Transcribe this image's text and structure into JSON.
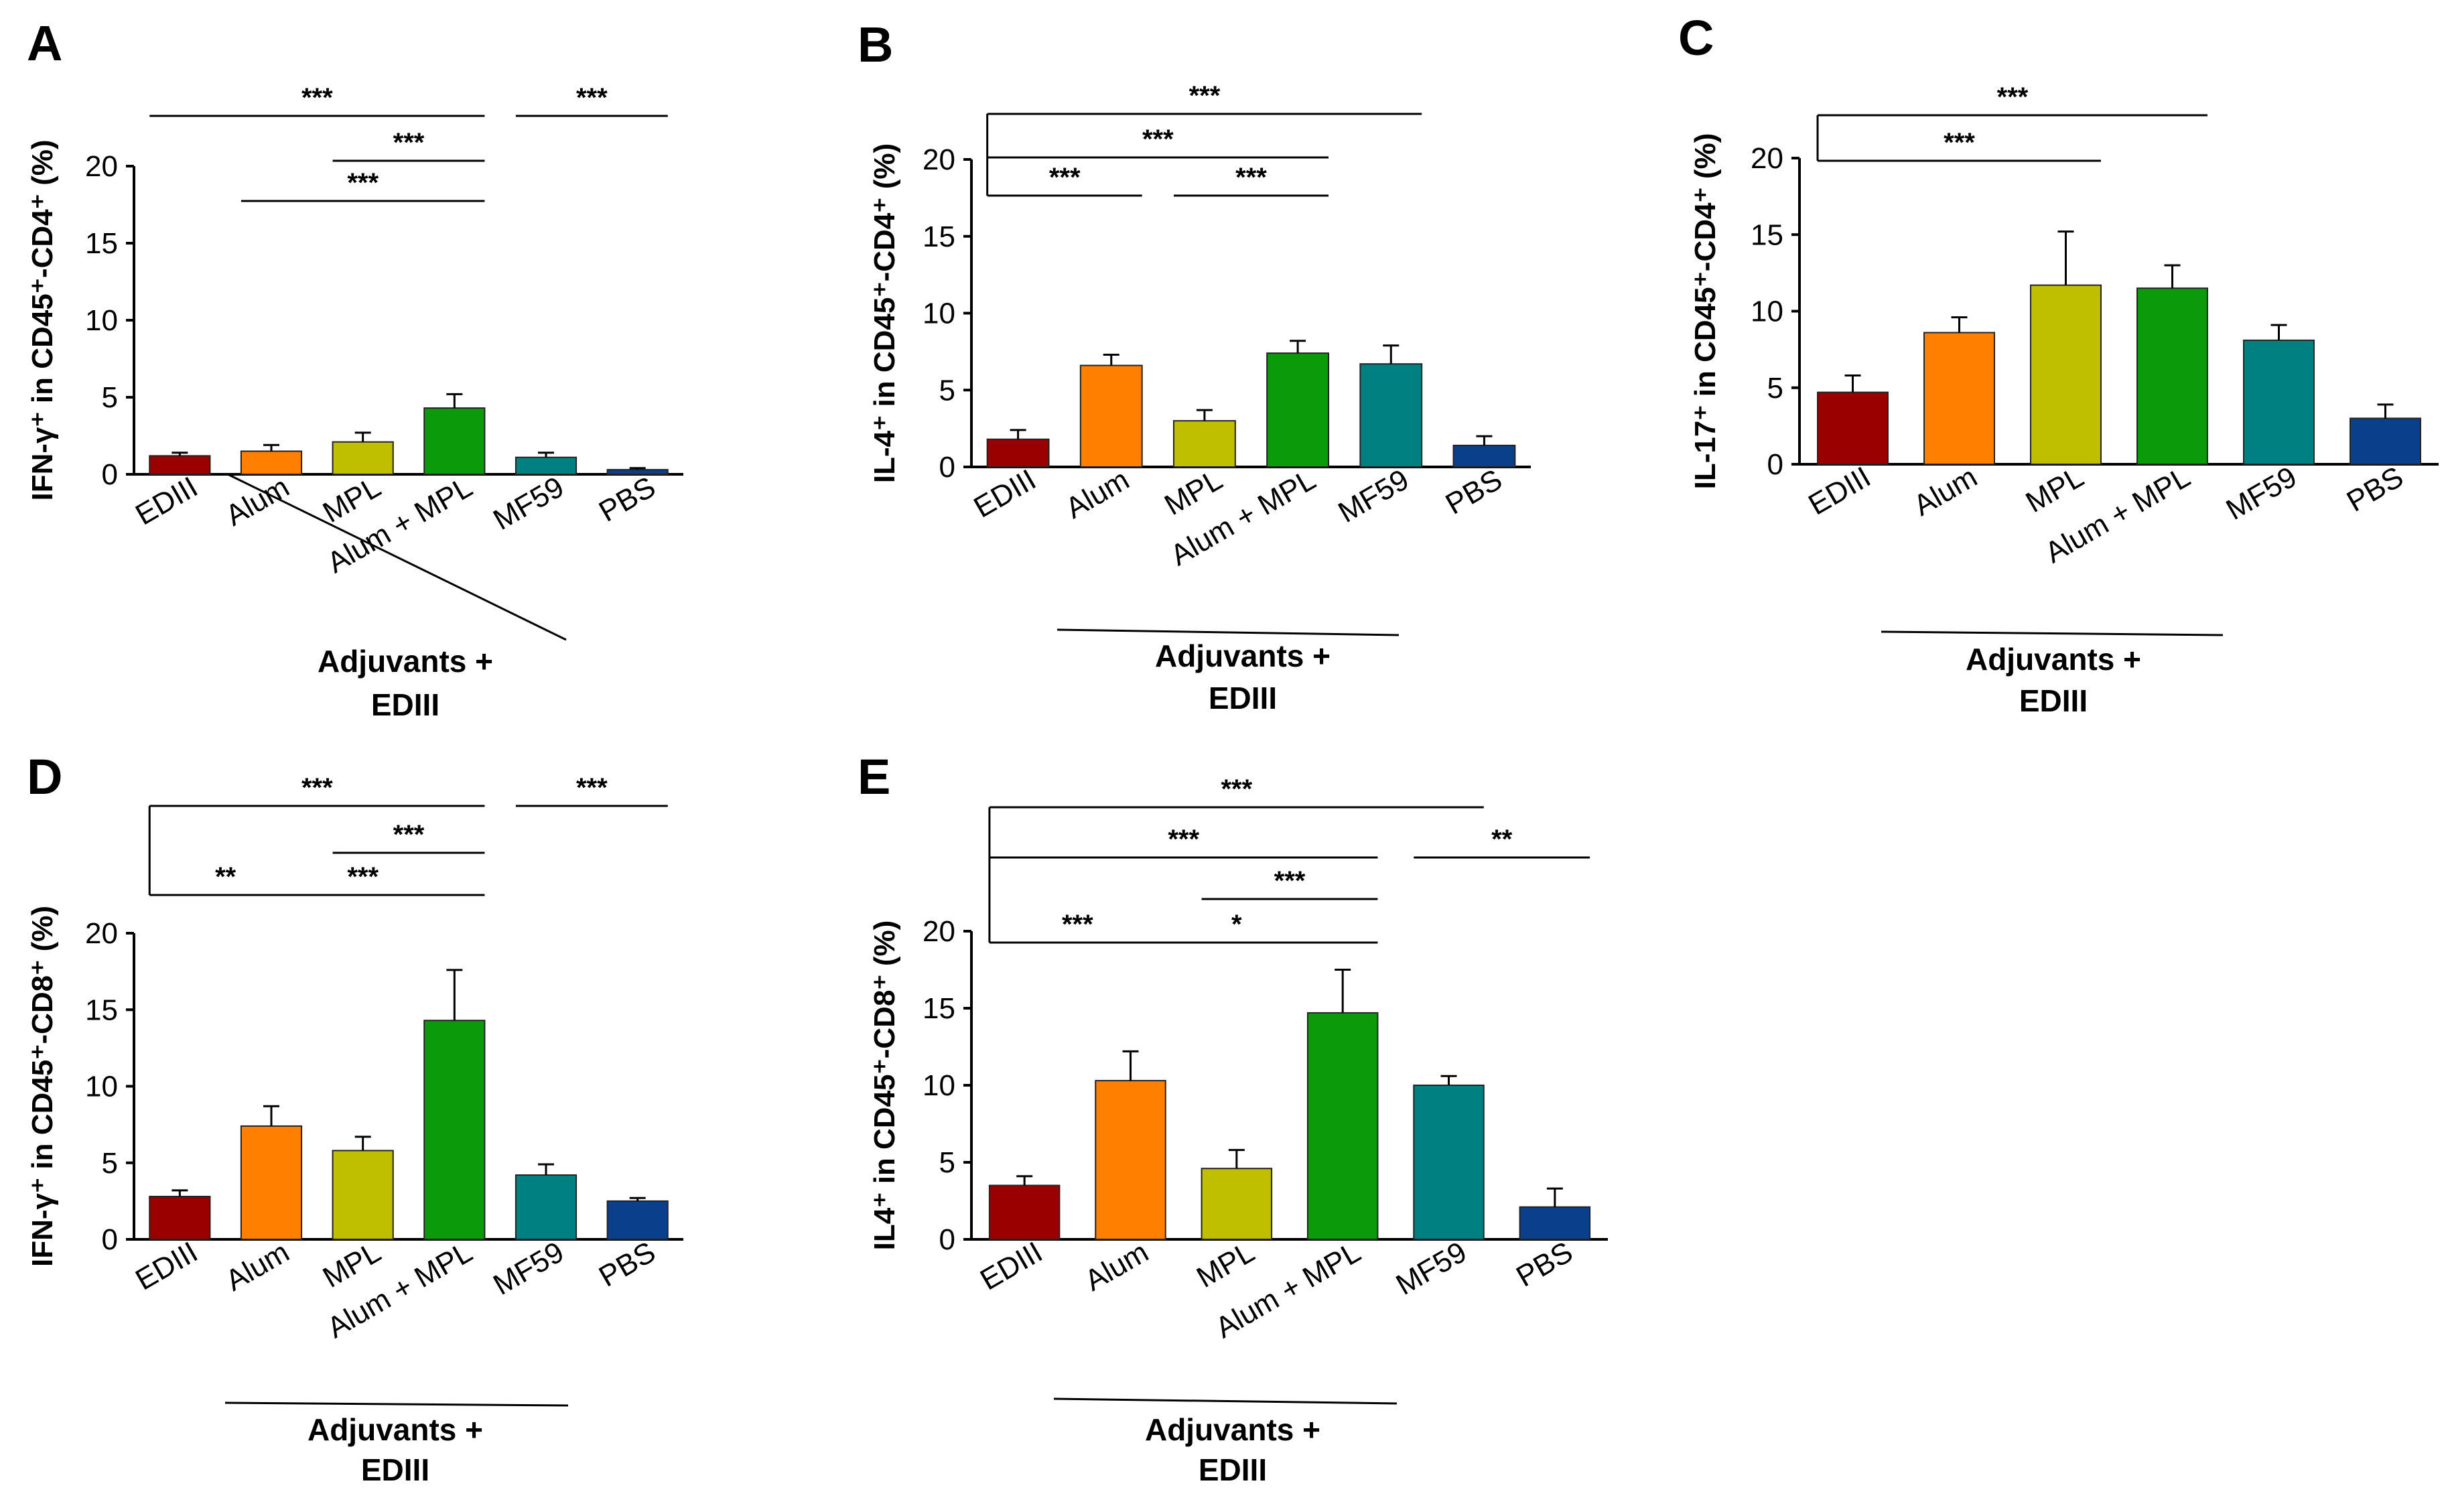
{
  "categories": [
    "EDIII",
    "Alum",
    "MPL",
    "Alum + MPL",
    "MF59",
    "PBS"
  ],
  "bar_colors": [
    "#9b0000",
    "#ff8000",
    "#bfbf00",
    "#0a9a0a",
    "#008080",
    "#0a3f8c"
  ],
  "group_label_line1": "Adjuvants +",
  "group_label_line2": "EDIII",
  "chart_data": [
    {
      "type": "bar",
      "panel": "A",
      "ylabel": "IFN-γ⁺ in CD45⁺-CD4⁺ (%)",
      "ylim": [
        0,
        20
      ],
      "yticks": [
        0,
        5,
        10,
        15,
        20
      ],
      "categories": [
        "EDIII",
        "Alum",
        "MPL",
        "Alum + MPL",
        "MF59",
        "PBS"
      ],
      "values": [
        1.2,
        1.5,
        2.1,
        4.3,
        1.1,
        0.3
      ],
      "errors": [
        0.2,
        0.4,
        0.6,
        0.9,
        0.3,
        0.1
      ],
      "significance": [
        {
          "from": "EDIII",
          "to": "Alum + MPL",
          "label": "***",
          "level": 3
        },
        {
          "from": "MF59",
          "to": "PBS",
          "label": "***",
          "level": 3
        },
        {
          "from": "MPL",
          "to": "Alum + MPL",
          "label": "***",
          "level": 2
        },
        {
          "from": "Alum",
          "to": "Alum + MPL",
          "label": "***",
          "level": 1
        }
      ]
    },
    {
      "type": "bar",
      "panel": "B",
      "ylabel": "IL-4⁺ in CD45⁺-CD4⁺ (%)",
      "ylim": [
        0,
        20
      ],
      "yticks": [
        0,
        5,
        10,
        15,
        20
      ],
      "categories": [
        "EDIII",
        "Alum",
        "MPL",
        "Alum + MPL",
        "MF59",
        "PBS"
      ],
      "values": [
        1.8,
        6.6,
        3.0,
        7.4,
        6.7,
        1.4
      ],
      "errors": [
        0.6,
        0.7,
        0.7,
        0.8,
        1.2,
        0.6
      ],
      "significance": [
        {
          "from": "EDIII",
          "to": "MF59",
          "label": "***",
          "level": 3
        },
        {
          "from": "EDIII",
          "to": "Alum + MPL",
          "label": "***",
          "level": 2
        },
        {
          "from": "EDIII",
          "to": "Alum",
          "label": "***",
          "level": 1
        },
        {
          "from": "MPL",
          "to": "Alum + MPL",
          "label": "***",
          "level": 1
        }
      ]
    },
    {
      "type": "bar",
      "panel": "C",
      "ylabel": "IL-17⁺ in CD45⁺-CD4⁺ (%)",
      "ylim": [
        0,
        20
      ],
      "yticks": [
        0,
        5,
        10,
        15,
        20
      ],
      "categories": [
        "EDIII",
        "Alum",
        "MPL",
        "Alum + MPL",
        "MF59",
        "PBS"
      ],
      "values": [
        4.7,
        8.6,
        11.7,
        11.5,
        8.1,
        3.0
      ],
      "errors": [
        1.1,
        1.0,
        3.5,
        1.5,
        1.0,
        0.9
      ],
      "significance": [
        {
          "from": "EDIII",
          "to": "Alum + MPL",
          "label": "***",
          "level": 2
        },
        {
          "from": "EDIII",
          "to": "MPL",
          "label": "***",
          "level": 1
        }
      ]
    },
    {
      "type": "bar",
      "panel": "D",
      "ylabel": "IFN-γ⁺ in CD45⁺-CD8⁺ (%)",
      "ylim": [
        0,
        20
      ],
      "yticks": [
        0,
        5,
        10,
        15,
        20
      ],
      "categories": [
        "EDIII",
        "Alum",
        "MPL",
        "Alum + MPL",
        "MF59",
        "PBS"
      ],
      "values": [
        2.8,
        7.4,
        5.8,
        14.3,
        4.2,
        2.5
      ],
      "errors": [
        0.4,
        1.3,
        0.9,
        3.3,
        0.7,
        0.2
      ],
      "significance": [
        {
          "from": "EDIII",
          "to": "Alum + MPL",
          "label": "***",
          "level": 3
        },
        {
          "from": "MF59",
          "to": "PBS",
          "label": "***",
          "level": 3
        },
        {
          "from": "MPL",
          "to": "Alum + MPL",
          "label": "***",
          "level": 2
        },
        {
          "from": "EDIII",
          "to": "Alum",
          "label": "**",
          "level": 1
        },
        {
          "from": "Alum",
          "to": "Alum + MPL",
          "label": "***",
          "level": 1
        }
      ]
    },
    {
      "type": "bar",
      "panel": "E",
      "ylabel": "IL4⁺ in CD45⁺-CD8⁺ (%)",
      "ylim": [
        0,
        20
      ],
      "yticks": [
        0,
        5,
        10,
        15,
        20
      ],
      "categories": [
        "EDIII",
        "Alum",
        "MPL",
        "Alum + MPL",
        "MF59",
        "PBS"
      ],
      "values": [
        3.5,
        10.3,
        4.6,
        14.7,
        10.0,
        2.1
      ],
      "errors": [
        0.6,
        1.9,
        1.2,
        2.8,
        0.6,
        1.2
      ],
      "significance": [
        {
          "from": "EDIII",
          "to": "MF59",
          "label": "***",
          "level": 4
        },
        {
          "from": "EDIII",
          "to": "Alum + MPL",
          "label": "***",
          "level": 3
        },
        {
          "from": "MF59",
          "to": "PBS",
          "label": "**",
          "level": 3
        },
        {
          "from": "MPL",
          "to": "Alum + MPL",
          "label": "***",
          "level": 2
        },
        {
          "from": "EDIII",
          "to": "Alum",
          "label": "***",
          "level": 1
        },
        {
          "from": "Alum",
          "to": "Alum + MPL",
          "label": "*",
          "level": 1
        }
      ]
    }
  ]
}
